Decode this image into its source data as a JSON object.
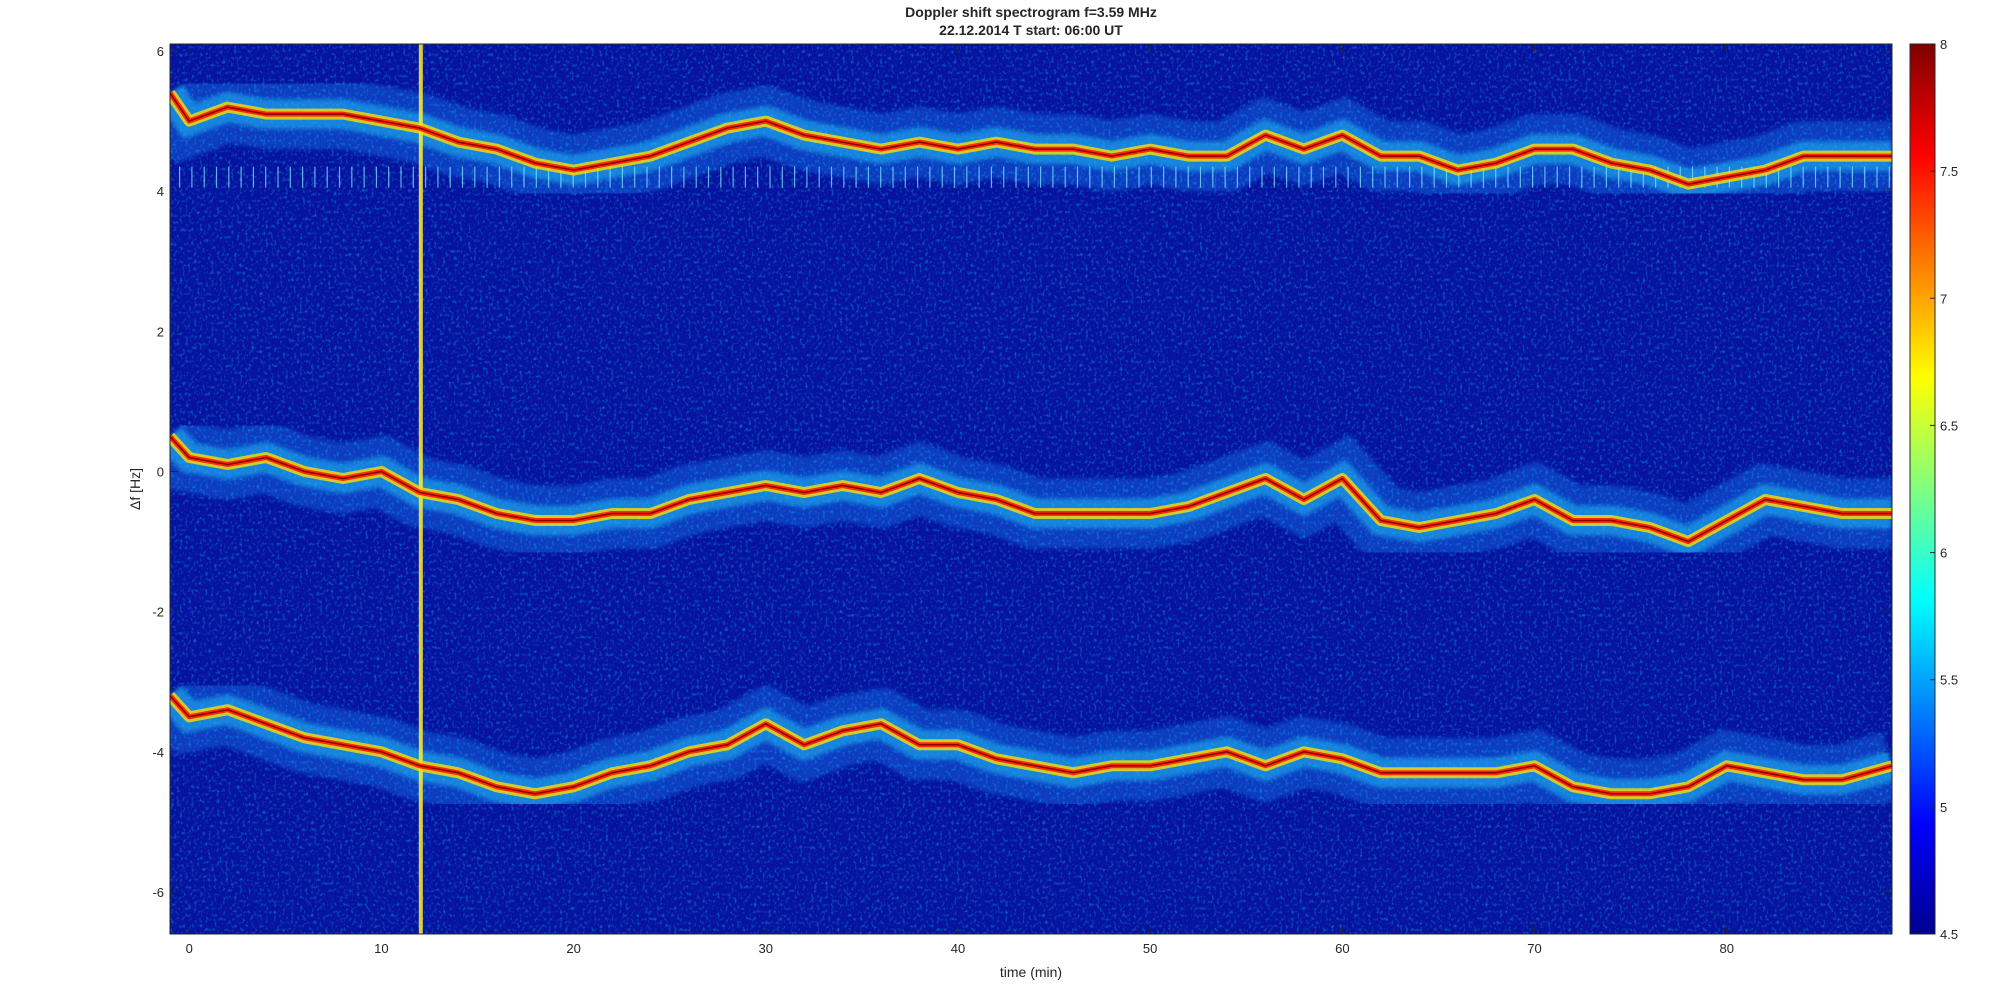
{
  "chart_data": {
    "type": "heatmap",
    "title": "Doppler shift spectrogram f=3.59 MHz",
    "subtitle": "22.12.2014   T start: 06:00 UT",
    "xlabel": "time (min)",
    "ylabel": "Δf [Hz]",
    "xlim": [
      -1,
      88.6
    ],
    "ylim": [
      -6.6,
      6.1
    ],
    "xticks": [
      0,
      10,
      20,
      30,
      40,
      50,
      60,
      70,
      80
    ],
    "yticks": [
      -6,
      -4,
      -2,
      0,
      2,
      4,
      6
    ],
    "colorbar": {
      "range": [
        4.5,
        8
      ],
      "ticks": [
        4.5,
        5,
        5.5,
        6,
        6.5,
        7,
        7.5,
        8
      ],
      "colormap": "jet"
    },
    "grid": false,
    "series": [
      {
        "role": "upper-trace",
        "x": [
          -1,
          0,
          2,
          4,
          6,
          8,
          10,
          12,
          14,
          16,
          18,
          20,
          22,
          24,
          26,
          28,
          30,
          32,
          34,
          36,
          38,
          40,
          42,
          44,
          46,
          48,
          50,
          52,
          54,
          56,
          58,
          60,
          62,
          64,
          66,
          68,
          70,
          72,
          74,
          76,
          78,
          80,
          82,
          84,
          86,
          88.6
        ],
        "y": [
          5.4,
          5.0,
          5.2,
          5.1,
          5.1,
          5.1,
          5.0,
          4.9,
          4.7,
          4.6,
          4.4,
          4.3,
          4.4,
          4.5,
          4.7,
          4.9,
          5.0,
          4.8,
          4.7,
          4.6,
          4.7,
          4.6,
          4.7,
          4.6,
          4.6,
          4.5,
          4.6,
          4.5,
          4.5,
          4.8,
          4.6,
          4.8,
          4.5,
          4.5,
          4.3,
          4.4,
          4.6,
          4.6,
          4.4,
          4.3,
          4.1,
          4.2,
          4.3,
          4.5,
          4.5,
          4.5
        ]
      },
      {
        "role": "middle-trace",
        "x": [
          -1,
          0,
          2,
          4,
          6,
          8,
          10,
          12,
          14,
          16,
          18,
          20,
          22,
          24,
          26,
          28,
          30,
          32,
          34,
          36,
          38,
          40,
          42,
          44,
          46,
          48,
          50,
          52,
          54,
          56,
          58,
          60,
          62,
          64,
          66,
          68,
          70,
          72,
          74,
          76,
          78,
          80,
          82,
          84,
          86,
          88.6
        ],
        "y": [
          0.5,
          0.2,
          0.1,
          0.2,
          0.0,
          -0.1,
          0.0,
          -0.3,
          -0.4,
          -0.6,
          -0.7,
          -0.7,
          -0.6,
          -0.6,
          -0.4,
          -0.3,
          -0.2,
          -0.3,
          -0.2,
          -0.3,
          -0.1,
          -0.3,
          -0.4,
          -0.6,
          -0.6,
          -0.6,
          -0.6,
          -0.5,
          -0.3,
          -0.1,
          -0.4,
          -0.1,
          -0.7,
          -0.8,
          -0.7,
          -0.6,
          -0.4,
          -0.7,
          -0.7,
          -0.8,
          -1.0,
          -0.7,
          -0.4,
          -0.5,
          -0.6,
          -0.6
        ]
      },
      {
        "role": "lower-trace",
        "x": [
          -1,
          0,
          2,
          4,
          6,
          8,
          10,
          12,
          14,
          16,
          18,
          20,
          22,
          24,
          26,
          28,
          30,
          32,
          34,
          36,
          38,
          40,
          42,
          44,
          46,
          48,
          50,
          52,
          54,
          56,
          58,
          60,
          62,
          64,
          66,
          68,
          70,
          72,
          74,
          76,
          78,
          80,
          82,
          84,
          86,
          88.6
        ],
        "y": [
          -3.2,
          -3.5,
          -3.4,
          -3.6,
          -3.8,
          -3.9,
          -4.0,
          -4.2,
          -4.3,
          -4.5,
          -4.6,
          -4.5,
          -4.3,
          -4.2,
          -4.0,
          -3.9,
          -3.6,
          -3.9,
          -3.7,
          -3.6,
          -3.9,
          -3.9,
          -4.1,
          -4.2,
          -4.3,
          -4.2,
          -4.2,
          -4.1,
          -4.0,
          -4.2,
          -4.0,
          -4.1,
          -4.3,
          -4.3,
          -4.3,
          -4.3,
          -4.2,
          -4.5,
          -4.6,
          -4.6,
          -4.5,
          -4.2,
          -4.3,
          -4.4,
          -4.4,
          -4.2
        ]
      }
    ]
  }
}
